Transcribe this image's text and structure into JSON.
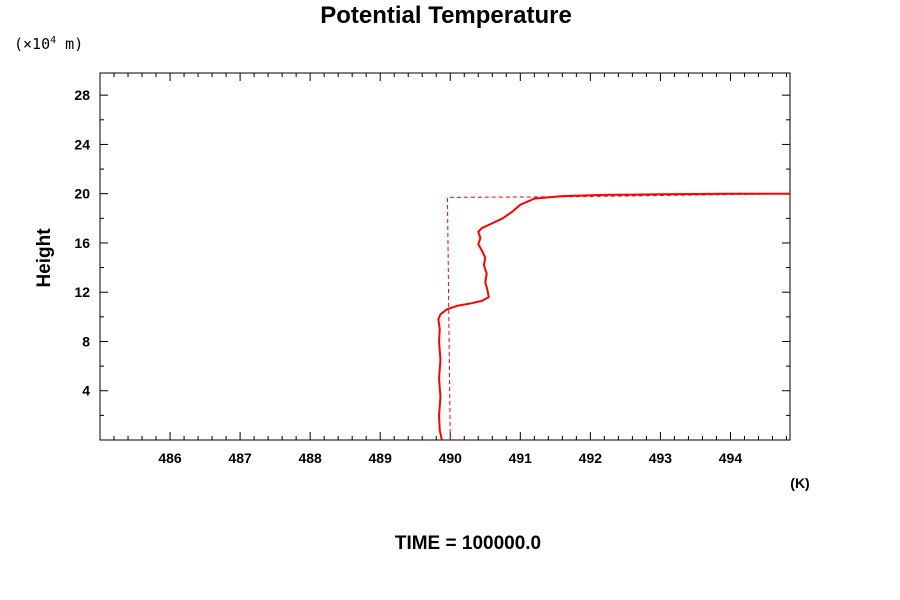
{
  "chart_data": {
    "type": "line",
    "title": "Potential Temperature",
    "ylabel": "Height",
    "y_unit_prefix": "(×10",
    "y_unit_exponent": "4",
    "y_unit_suffix": " m)",
    "x_unit": "(K)",
    "footer": "TIME = 100000.0",
    "xlim": [
      485,
      494.85
    ],
    "ylim": [
      0,
      29.8
    ],
    "x_ticks": [
      486,
      487,
      488,
      489,
      490,
      491,
      492,
      493,
      494
    ],
    "x_tick_labels": [
      "486",
      "487",
      "488",
      "489",
      "490",
      "491",
      "492",
      "493",
      "494"
    ],
    "y_ticks": [
      4,
      8,
      12,
      16,
      20,
      24,
      28
    ],
    "y_tick_labels": [
      "4",
      "8",
      "12",
      "16",
      "20",
      "24",
      "28"
    ],
    "grid": false,
    "series": [
      {
        "style": "solid",
        "color": "#ff0000",
        "points": [
          [
            489.88,
            0.0
          ],
          [
            489.85,
            0.8
          ],
          [
            489.84,
            2.0
          ],
          [
            489.86,
            3.5
          ],
          [
            489.84,
            5.0
          ],
          [
            489.86,
            6.5
          ],
          [
            489.84,
            8.0
          ],
          [
            489.85,
            9.0
          ],
          [
            489.83,
            9.8
          ],
          [
            489.86,
            10.2
          ],
          [
            489.95,
            10.6
          ],
          [
            490.1,
            10.9
          ],
          [
            490.3,
            11.1
          ],
          [
            490.45,
            11.3
          ],
          [
            490.55,
            11.6
          ],
          [
            490.53,
            12.2
          ],
          [
            490.5,
            12.8
          ],
          [
            490.52,
            13.5
          ],
          [
            490.48,
            14.2
          ],
          [
            490.5,
            14.8
          ],
          [
            490.45,
            15.4
          ],
          [
            490.4,
            15.9
          ],
          [
            490.43,
            16.4
          ],
          [
            490.4,
            16.9
          ],
          [
            490.45,
            17.2
          ],
          [
            490.6,
            17.6
          ],
          [
            490.75,
            18.0
          ],
          [
            490.9,
            18.6
          ],
          [
            491.0,
            19.1
          ],
          [
            491.2,
            19.6
          ],
          [
            491.6,
            19.8
          ],
          [
            492.2,
            19.9
          ],
          [
            493.0,
            19.95
          ],
          [
            494.0,
            20.0
          ],
          [
            494.85,
            20.0
          ]
        ]
      },
      {
        "style": "dashed",
        "color": "#ff0000",
        "points": [
          [
            490.0,
            0.0
          ],
          [
            489.96,
            19.7
          ],
          [
            491.7,
            19.75
          ],
          [
            494.85,
            20.0
          ]
        ]
      }
    ]
  }
}
